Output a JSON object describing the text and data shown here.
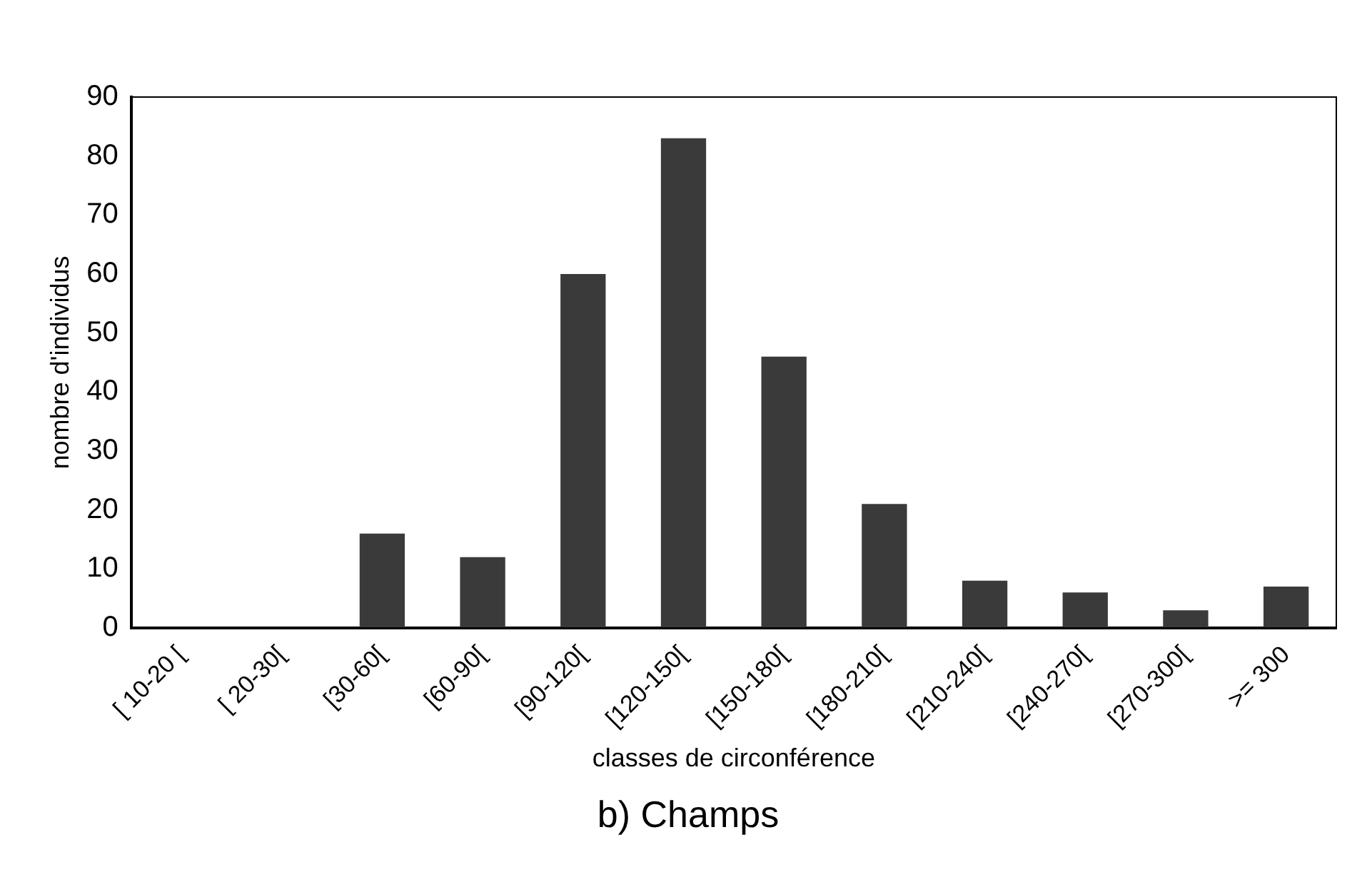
{
  "chart_data": {
    "type": "bar",
    "title": "b) Champs",
    "xlabel": "classes de circonférence",
    "ylabel": "nombre d'individus",
    "categories": [
      "[ 10-20 [",
      "[ 20-30[",
      "[30-60[",
      "[60-90[",
      "[90-120[",
      "[120-150[",
      "[150-180[",
      "[180-210[",
      "[210-240[",
      "[240-270[",
      "[270-300[",
      ">= 300"
    ],
    "values": [
      0,
      0,
      16,
      12,
      60,
      83,
      46,
      21,
      8,
      6,
      3,
      7
    ],
    "color": "#3a3a3a",
    "ylim": [
      0,
      90
    ],
    "yticks": [
      0,
      10,
      20,
      30,
      40,
      50,
      60,
      70,
      80,
      90
    ],
    "grid": false,
    "legend": false
  }
}
